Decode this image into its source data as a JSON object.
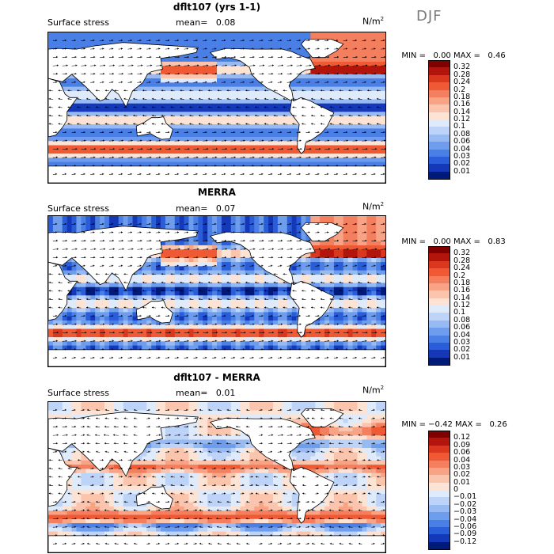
{
  "season": "DJF",
  "panels": [
    {
      "title": "dflt107 (yrs 1-1)",
      "left_label": "Surface stress",
      "mean_label": "mean=",
      "mean_value": "0.08",
      "units_base": "N/m",
      "units_exp": "2",
      "min_label": "MIN =",
      "min_value": "0.00",
      "max_label": "MAX =",
      "max_value": "0.46",
      "colorbar": {
        "levels": [
          "0.32",
          "0.28",
          "0.24",
          "0.2",
          "0.18",
          "0.16",
          "0.14",
          "0.12",
          "0.1",
          "0.08",
          "0.06",
          "0.04",
          "0.03",
          "0.02",
          "0.01"
        ],
        "colors": [
          "#800000",
          "#b3150c",
          "#d9381e",
          "#ef5a35",
          "#f47f5e",
          "#f8a385",
          "#fbc5ad",
          "#fde3d4",
          "#dfeafb",
          "#bdd3f7",
          "#98baf2",
          "#6f9ded",
          "#4a7fe6",
          "#2a5ed9",
          "#1538b8",
          "#001a7a"
        ]
      }
    },
    {
      "title": "MERRA",
      "left_label": "Surface stress",
      "mean_label": "mean=",
      "mean_value": "0.07",
      "units_base": "N/m",
      "units_exp": "2",
      "min_label": "MIN =",
      "min_value": "0.00",
      "max_label": "MAX =",
      "max_value": "0.83",
      "colorbar": {
        "levels": [
          "0.32",
          "0.28",
          "0.24",
          "0.2",
          "0.18",
          "0.16",
          "0.14",
          "0.12",
          "0.1",
          "0.08",
          "0.06",
          "0.04",
          "0.03",
          "0.02",
          "0.01"
        ],
        "colors": [
          "#800000",
          "#b3150c",
          "#d9381e",
          "#ef5a35",
          "#f47f5e",
          "#f8a385",
          "#fbc5ad",
          "#fde3d4",
          "#dfeafb",
          "#bdd3f7",
          "#98baf2",
          "#6f9ded",
          "#4a7fe6",
          "#2a5ed9",
          "#1538b8",
          "#001a7a"
        ]
      }
    },
    {
      "title": "dflt107 - MERRA",
      "left_label": "Surface stress",
      "mean_label": "mean=",
      "mean_value": "0.01",
      "units_base": "N/m",
      "units_exp": "2",
      "min_label": "MIN =",
      "min_value": "−0.42",
      "max_label": "MAX =",
      "max_value": "0.26",
      "colorbar": {
        "levels": [
          "0.12",
          "0.09",
          "0.06",
          "0.04",
          "0.03",
          "0.02",
          "0.01",
          "0",
          "−0.01",
          "−0.02",
          "−0.03",
          "−0.04",
          "−0.06",
          "−0.09",
          "−0.12"
        ],
        "colors": [
          "#800000",
          "#b3150c",
          "#d9381e",
          "#ef5a35",
          "#f47f5e",
          "#f8a385",
          "#fbc5ad",
          "#fde3d4",
          "#dfeafb",
          "#bdd3f7",
          "#98baf2",
          "#6f9ded",
          "#4a7fe6",
          "#2a5ed9",
          "#1538b8",
          "#001a7a"
        ]
      }
    }
  ],
  "chart_data": [
    {
      "type": "heatmap",
      "title": "dflt107 (yrs 1-1)",
      "variable": "Surface stress",
      "units": "N/m2",
      "mean": 0.08,
      "min": 0.0,
      "max": 0.46,
      "contour_levels": [
        0.01,
        0.02,
        0.03,
        0.04,
        0.06,
        0.08,
        0.1,
        0.12,
        0.14,
        0.16,
        0.18,
        0.2,
        0.24,
        0.28,
        0.32
      ],
      "overlay": "wind stress vectors",
      "projection": "global cylindrical, Pacific-centered"
    },
    {
      "type": "heatmap",
      "title": "MERRA",
      "variable": "Surface stress",
      "units": "N/m2",
      "mean": 0.07,
      "min": 0.0,
      "max": 0.83,
      "contour_levels": [
        0.01,
        0.02,
        0.03,
        0.04,
        0.06,
        0.08,
        0.1,
        0.12,
        0.14,
        0.16,
        0.18,
        0.2,
        0.24,
        0.28,
        0.32
      ],
      "overlay": "wind stress vectors",
      "projection": "global cylindrical, Pacific-centered"
    },
    {
      "type": "heatmap",
      "title": "dflt107 - MERRA",
      "variable": "Surface stress",
      "units": "N/m2",
      "mean": 0.01,
      "min": -0.42,
      "max": 0.26,
      "contour_levels": [
        -0.12,
        -0.09,
        -0.06,
        -0.04,
        -0.03,
        -0.02,
        -0.01,
        0,
        0.01,
        0.02,
        0.03,
        0.04,
        0.06,
        0.09,
        0.12
      ],
      "overlay": "wind stress difference vectors",
      "projection": "global cylindrical, Pacific-centered"
    }
  ]
}
